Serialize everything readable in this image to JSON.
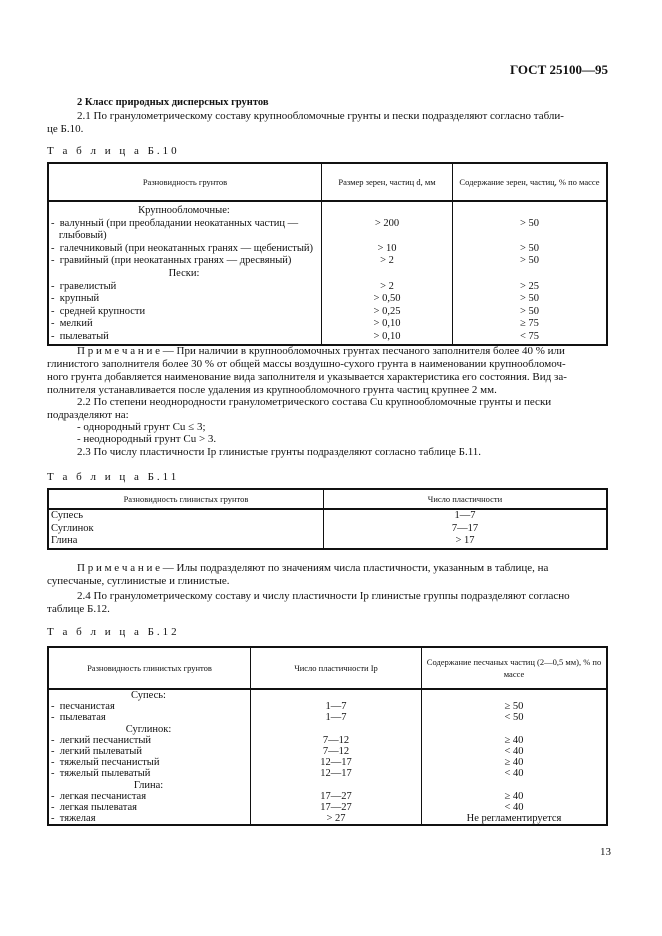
{
  "header": {
    "doc_code": "ГОСТ 25100—95"
  },
  "section": {
    "heading": "2  Класс природных дисперсных грунтов",
    "p21_line1": "2.1  По гранулометрическому составу крупнообломочные грунты и пески подразделяют согласно табли-",
    "p21_line2": "це Б.10."
  },
  "table10": {
    "label": "Т а б л и ц а  Б.10",
    "headers": [
      "Разновидность грунтов",
      "Размер зерен, частиц d, мм",
      "Содержание зерен, частиц, % по массе"
    ],
    "rows": [
      {
        "name": "Крупнообломочные:",
        "group": true,
        "size": "",
        "content": ""
      },
      {
        "name": "-  валунный (при преобладании неокатанных частиц —",
        "size": "> 200",
        "content": "> 50"
      },
      {
        "name": "   глыбовый)",
        "size": "",
        "content": ""
      },
      {
        "name": "-  галечниковый (при неокатанных гранях — щебенистый)",
        "size": "> 10",
        "content": "> 50"
      },
      {
        "name": "-  гравийный (при неокатанных гранях — дресвяный)",
        "size": "> 2",
        "content": "> 50"
      },
      {
        "name": "Пески:",
        "group": true,
        "size": "",
        "content": ""
      },
      {
        "name": "-  гравелистый",
        "size": "> 2",
        "content": "> 25"
      },
      {
        "name": "-  крупный",
        "size": "> 0,50",
        "content": "> 50"
      },
      {
        "name": "-  средней крупности",
        "size": "> 0,25",
        "content": "> 50"
      },
      {
        "name": "-  мелкий",
        "size": "> 0,10",
        "content": "≥ 75"
      },
      {
        "name": "-  пылеватый",
        "size": "> 0,10",
        "content": "< 75"
      }
    ]
  },
  "note1": {
    "lines": [
      "П р и м е ч а н и е — При наличии в крупнообломочных грунтах песчаного заполнителя более 40 % или",
      "глинистого заполнителя более 30 % от общей массы воздушно-сухого грунта в наименовании крупнообломоч-",
      "ного грунта добавляется наименование вида заполнителя и указывается характеристика его состояния. Вид за-",
      "полнителя устанавливается после удаления из крупнообломочного грунта частиц крупнее 2 мм."
    ]
  },
  "p22": {
    "line1": "2.2  По степени неоднородности гранулометрического состава Cu крупнообломочные грунты и пески",
    "line2": "подразделяют на:",
    "item1": "-  однородный грунт Cu ≤ 3;",
    "item2": "-  неоднородный грунт Cu > 3."
  },
  "p23": "2.3  По числу пластичности Ip глинистые грунты подразделяют согласно таблице Б.11.",
  "table11": {
    "label": "Т а б л и ц а  Б.11",
    "headers": [
      "Разновидность глинистых грунтов",
      "Число пластичности"
    ],
    "rows": [
      {
        "name": "Супесь",
        "value": "1—7"
      },
      {
        "name": "Суглинок",
        "value": "7—17"
      },
      {
        "name": "Глина",
        "value": "> 17"
      }
    ]
  },
  "note2": {
    "lines": [
      "П р и м е ч а н и е — Илы подразделяют по значениям числа пластичности, указанным в таблице, на",
      "супесчаные, суглинистые и глинистые."
    ]
  },
  "p24": {
    "line1": "2.4  По гранулометрическому составу и числу пластичности Ip глинистые группы подразделяют согласно",
    "line2": "таблице Б.12."
  },
  "table12": {
    "label": "Т а б л и ц а  Б.12",
    "headers": [
      "Разновидность глинистых грунтов",
      "Число пластичности Ip",
      "Содержание песчаных частиц (2—0,5 мм), % по массе"
    ],
    "rows": [
      {
        "name": "Супесь:",
        "group": true,
        "ip": "",
        "sand": ""
      },
      {
        "name": "-  песчанистая",
        "ip": "1—7",
        "sand": "≥ 50"
      },
      {
        "name": "-  пылеватая",
        "ip": "1—7",
        "sand": "< 50"
      },
      {
        "name": "Суглинок:",
        "group": true,
        "ip": "",
        "sand": ""
      },
      {
        "name": "-  легкий песчанистый",
        "ip": "7—12",
        "sand": "≥ 40"
      },
      {
        "name": "-  легкий пылеватый",
        "ip": "7—12",
        "sand": "< 40"
      },
      {
        "name": "-  тяжелый песчанистый",
        "ip": "12—17",
        "sand": "≥ 40"
      },
      {
        "name": "-  тяжелый пылеватый",
        "ip": "12—17",
        "sand": "< 40"
      },
      {
        "name": "Глина:",
        "group": true,
        "ip": "",
        "sand": ""
      },
      {
        "name": "-  легкая песчанистая",
        "ip": "17—27",
        "sand": "≥ 40"
      },
      {
        "name": "-  легкая пылеватая",
        "ip": "17—27",
        "sand": "< 40"
      },
      {
        "name": "-  тяжелая",
        "ip": "> 27",
        "sand": "Не регламентируется"
      }
    ]
  },
  "page_number": "13"
}
